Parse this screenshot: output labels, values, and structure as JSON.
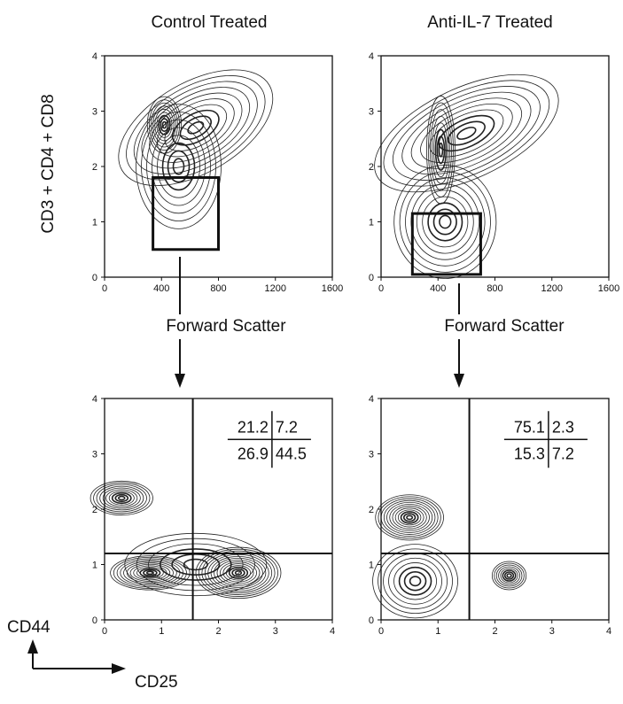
{
  "panel_titles": [
    "Control Treated",
    "Anti-IL-7 Treated"
  ],
  "labels": {
    "top_ylabel": "CD3 + CD4 + CD8",
    "top_xlabel": "Forward Scatter",
    "bottom_ylabel": "CD44",
    "bottom_xlabel": "CD25"
  },
  "chart_data": [
    {
      "type": "contour",
      "title": "Control Treated",
      "xlabel": "Forward Scatter",
      "ylabel": "CD3 + CD4 + CD8",
      "xlim": [
        0,
        1600
      ],
      "ylim": [
        0,
        4
      ],
      "xticks": [
        "0",
        "400",
        "800",
        "1200",
        "1600"
      ],
      "yticks": [
        "0",
        "1",
        "2",
        "3",
        "4"
      ],
      "gate": {
        "x": [
          340,
          800
        ],
        "y": [
          0.5,
          1.8
        ]
      }
    },
    {
      "type": "contour",
      "title": "Anti-IL-7 Treated",
      "xlabel": "Forward Scatter",
      "ylabel": "CD3 + CD4 + CD8",
      "xlim": [
        0,
        1600
      ],
      "ylim": [
        0,
        4
      ],
      "xticks": [
        "0",
        "400",
        "800",
        "1200",
        "1600"
      ],
      "yticks": [
        "0",
        "1",
        "2",
        "3",
        "4"
      ],
      "gate": {
        "x": [
          220,
          700
        ],
        "y": [
          0.05,
          1.15
        ]
      }
    },
    {
      "type": "contour",
      "xlabel": "CD25",
      "ylabel": "CD44",
      "xlim": [
        0,
        4
      ],
      "ylim": [
        0,
        4
      ],
      "xticks": [
        "0",
        "1",
        "2",
        "3",
        "4"
      ],
      "yticks": [
        "0",
        "1",
        "2",
        "3",
        "4"
      ],
      "quadrant_divider": {
        "x": 1.55,
        "y": 1.2
      },
      "quadrants": {
        "upper_left": "21.2",
        "upper_right": "7.2",
        "lower_left": "26.9",
        "lower_right": "44.5"
      }
    },
    {
      "type": "contour",
      "xlabel": "CD25",
      "ylabel": "CD44",
      "xlim": [
        0,
        4
      ],
      "ylim": [
        0,
        4
      ],
      "xticks": [
        "0",
        "1",
        "2",
        "3",
        "4"
      ],
      "yticks": [
        "0",
        "1",
        "2",
        "3",
        "4"
      ],
      "quadrant_divider": {
        "x": 1.55,
        "y": 1.2
      },
      "quadrants": {
        "upper_left": "75.1",
        "upper_right": "2.3",
        "lower_left": "15.3",
        "lower_right": "7.2"
      }
    }
  ]
}
